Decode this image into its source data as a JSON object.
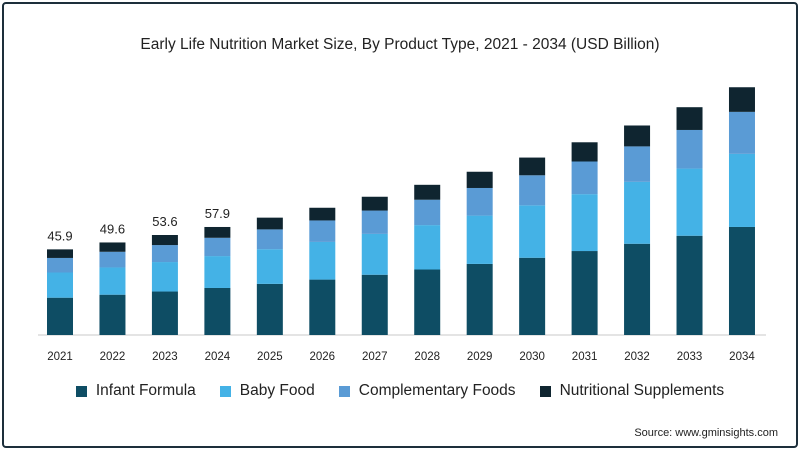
{
  "chart_data": {
    "type": "bar",
    "stacked": true,
    "title": "Early Life Nutrition Market Size, By Product Type, 2021 - 2034 (USD Billion)",
    "xlabel": "",
    "ylabel": "",
    "categories": [
      "2021",
      "2022",
      "2023",
      "2024",
      "2025",
      "2026",
      "2027",
      "2028",
      "2029",
      "2030",
      "2031",
      "2032",
      "2033",
      "2034"
    ],
    "series": [
      {
        "name": "Infant Formula",
        "color": "#0e4d64",
        "values": [
          20.0,
          21.6,
          23.3,
          25.2,
          27.4,
          29.7,
          32.3,
          35.1,
          38.1,
          41.4,
          45.0,
          48.9,
          53.2,
          57.9
        ]
      },
      {
        "name": "Baby Food",
        "color": "#44b2e6",
        "values": [
          13.5,
          14.6,
          15.8,
          17.1,
          18.6,
          20.2,
          21.9,
          23.8,
          25.9,
          28.1,
          30.5,
          33.2,
          36.0,
          39.2
        ]
      },
      {
        "name": "Complementary Foods",
        "color": "#5a9bd5",
        "values": [
          7.8,
          8.4,
          9.1,
          9.8,
          10.6,
          11.5,
          12.5,
          13.6,
          14.8,
          16.1,
          17.5,
          19.0,
          20.7,
          22.5
        ]
      },
      {
        "name": "Nutritional Supplements",
        "color": "#0f2530",
        "values": [
          4.6,
          5.0,
          5.4,
          5.8,
          6.3,
          6.8,
          7.4,
          8.0,
          8.7,
          9.5,
          10.3,
          11.2,
          12.2,
          13.2
        ]
      }
    ],
    "data_labels": [
      {
        "category": "2021",
        "text": "45.9"
      },
      {
        "category": "2022",
        "text": "49.6"
      },
      {
        "category": "2023",
        "text": "53.6"
      },
      {
        "category": "2024",
        "text": "57.9"
      }
    ],
    "ylim": [
      0,
      134
    ],
    "grid": false,
    "legend_position": "bottom"
  },
  "source": "Source: www.gminsights.com"
}
